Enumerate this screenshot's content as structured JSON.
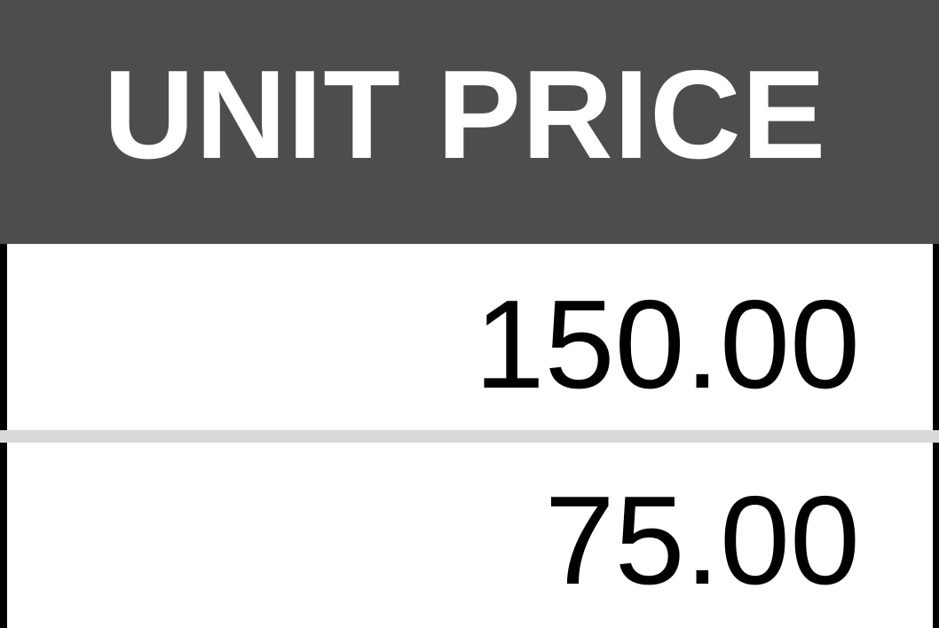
{
  "table": {
    "header": "UNIT PRICE",
    "rows": [
      "150.00",
      "75.00"
    ]
  },
  "colors": {
    "header_background": "#4d4d4d",
    "header_text": "#ffffff",
    "row_divider": "#d9d9d9",
    "cell_text": "#000000"
  }
}
